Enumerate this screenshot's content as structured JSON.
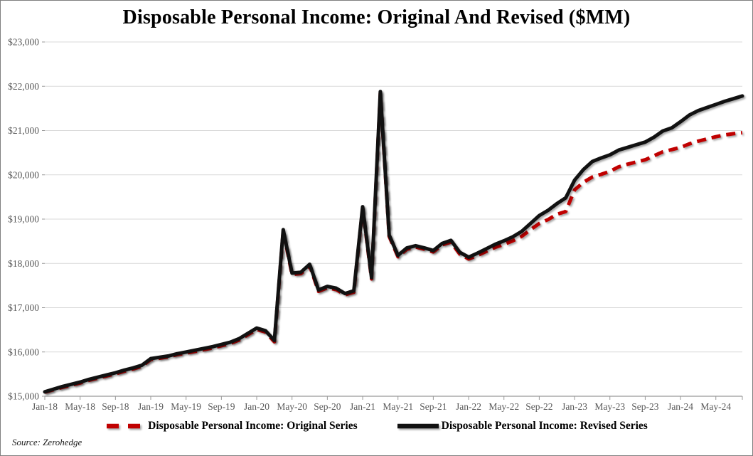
{
  "title": "Disposable Personal Income: Original And Revised ($MM)",
  "source": "Source: Zerohedge",
  "legend": {
    "original_label": "Disposable Personal Income: Original Series",
    "revised_label": "Disposable Personal Income: Revised Series"
  },
  "colors": {
    "original": "#C00000",
    "revised": "#111111",
    "grid": "#D9D9D9",
    "axis": "#999999",
    "tick_text": "#595959"
  },
  "chart_data": {
    "type": "line",
    "title": "Disposable Personal Income: Original And Revised ($MM)",
    "xlabel": "",
    "ylabel": "",
    "ylim": [
      15000,
      23000
    ],
    "grid": "horizontal",
    "legend_position": "bottom",
    "y_tick_labels": [
      "$15,000",
      "$16,000",
      "$17,000",
      "$18,000",
      "$19,000",
      "$20,000",
      "$21,000",
      "$22,000",
      "$23,000"
    ],
    "y_tick_values": [
      15000,
      16000,
      17000,
      18000,
      19000,
      20000,
      21000,
      22000,
      23000
    ],
    "x_tick_labels": [
      "Jan-18",
      "May-18",
      "Sep-18",
      "Jan-19",
      "May-19",
      "Sep-19",
      "Jan-20",
      "May-20",
      "Sep-20",
      "Jan-21",
      "May-21",
      "Sep-21",
      "Jan-22",
      "May-22",
      "Sep-22",
      "Jan-23",
      "May-23",
      "Sep-23",
      "Jan-24",
      "May-24"
    ],
    "x_tick_every": 4,
    "x": [
      "Jan-18",
      "Feb-18",
      "Mar-18",
      "Apr-18",
      "May-18",
      "Jun-18",
      "Jul-18",
      "Aug-18",
      "Sep-18",
      "Oct-18",
      "Nov-18",
      "Dec-18",
      "Jan-19",
      "Feb-19",
      "Mar-19",
      "Apr-19",
      "May-19",
      "Jun-19",
      "Jul-19",
      "Aug-19",
      "Sep-19",
      "Oct-19",
      "Nov-19",
      "Dec-19",
      "Jan-20",
      "Feb-20",
      "Mar-20",
      "Apr-20",
      "May-20",
      "Jun-20",
      "Jul-20",
      "Aug-20",
      "Sep-20",
      "Oct-20",
      "Nov-20",
      "Dec-20",
      "Jan-21",
      "Feb-21",
      "Mar-21",
      "Apr-21",
      "May-21",
      "Jun-21",
      "Jul-21",
      "Aug-21",
      "Sep-21",
      "Oct-21",
      "Nov-21",
      "Dec-21",
      "Jan-22",
      "Feb-22",
      "Mar-22",
      "Apr-22",
      "May-22",
      "Jun-22",
      "Jul-22",
      "Aug-22",
      "Sep-22",
      "Oct-22",
      "Nov-22",
      "Dec-22",
      "Jan-23",
      "Feb-23",
      "Mar-23",
      "Apr-23",
      "May-23",
      "Jun-23",
      "Jul-23",
      "Aug-23",
      "Sep-23",
      "Oct-23",
      "Nov-23",
      "Dec-23",
      "Jan-24",
      "Feb-24",
      "Mar-24",
      "Apr-24",
      "May-24",
      "Jun-24",
      "Jul-24",
      "Aug-24"
    ],
    "series": [
      {
        "name": "Disposable Personal Income: Original Series",
        "style": "dashed",
        "color": "#C00000",
        "values": [
          15090,
          15150,
          15200,
          15250,
          15300,
          15360,
          15410,
          15460,
          15505,
          15565,
          15615,
          15680,
          15830,
          15860,
          15890,
          15940,
          15975,
          16010,
          16050,
          16090,
          16140,
          16190,
          16270,
          16390,
          16510,
          16450,
          16230,
          18730,
          17750,
          17770,
          17950,
          17370,
          17450,
          17410,
          17290,
          17350,
          19250,
          17650,
          21850,
          18610,
          18150,
          18320,
          18370,
          18320,
          18260,
          18420,
          18480,
          18210,
          18100,
          18180,
          18270,
          18360,
          18430,
          18510,
          18610,
          18760,
          18900,
          18990,
          19110,
          19170,
          19660,
          19830,
          19950,
          20010,
          20080,
          20180,
          20240,
          20290,
          20340,
          20430,
          20520,
          20570,
          20620,
          20700,
          20760,
          20810,
          20860,
          20900,
          20930,
          20950
        ]
      },
      {
        "name": "Disposable Personal Income: Revised Series",
        "style": "solid",
        "color": "#111111",
        "values": [
          15100,
          15160,
          15220,
          15270,
          15320,
          15380,
          15430,
          15480,
          15530,
          15590,
          15640,
          15700,
          15850,
          15880,
          15910,
          15960,
          16000,
          16040,
          16080,
          16120,
          16170,
          16220,
          16300,
          16420,
          16540,
          16480,
          16260,
          18760,
          17780,
          17800,
          17980,
          17400,
          17480,
          17440,
          17320,
          17380,
          19280,
          17680,
          21880,
          18640,
          18180,
          18350,
          18400,
          18350,
          18290,
          18450,
          18520,
          18250,
          18140,
          18230,
          18330,
          18430,
          18510,
          18600,
          18720,
          18900,
          19080,
          19200,
          19350,
          19480,
          19880,
          20120,
          20300,
          20380,
          20450,
          20560,
          20620,
          20680,
          20740,
          20850,
          20990,
          21060,
          21200,
          21350,
          21450,
          21520,
          21590,
          21660,
          21720,
          21780
        ]
      }
    ]
  }
}
